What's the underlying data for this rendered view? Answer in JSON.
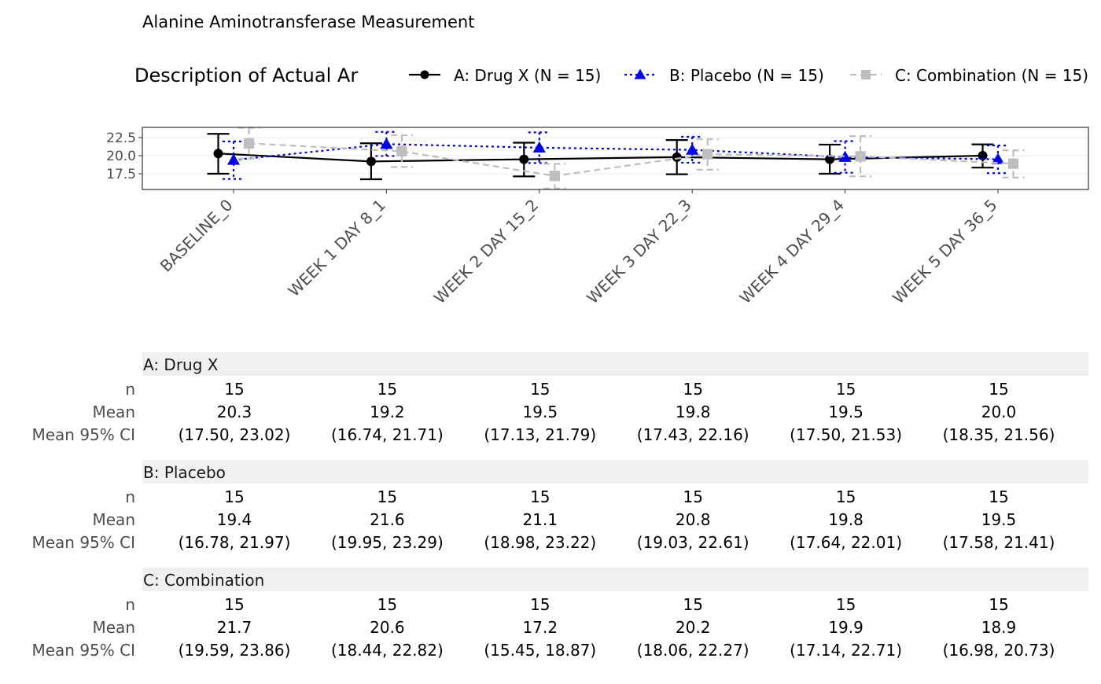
{
  "chart_data": {
    "type": "line",
    "title": "Alanine Aminotransferase Measurement",
    "legend": {
      "title": "Description of Actual Ar",
      "position": "top"
    },
    "xlabel": "",
    "ylabel": "",
    "categories": [
      "BASELINE_0",
      "WEEK 1 DAY 8_1",
      "WEEK 2 DAY 15_2",
      "WEEK 3 DAY 22_3",
      "WEEK 4 DAY 29_4",
      "WEEK 5 DAY 36_5"
    ],
    "y_ticks": [
      "17.5",
      "20.0",
      "22.5"
    ],
    "ylim": [
      15.3,
      24.2
    ],
    "grid": true,
    "series": [
      {
        "name": "A: Drug X (N = 15)",
        "color": "#000000",
        "marker": "circle",
        "line_style": "solid",
        "values": [
          20.3,
          19.2,
          19.5,
          19.8,
          19.5,
          20.0
        ],
        "ci_low": [
          17.5,
          16.74,
          17.13,
          17.43,
          17.5,
          18.35
        ],
        "ci_high": [
          23.02,
          21.71,
          21.79,
          22.16,
          21.53,
          21.56
        ]
      },
      {
        "name": "B: Placebo (N = 15)",
        "color": "#0000ee",
        "marker": "triangle",
        "line_style": "dotted",
        "values": [
          19.4,
          21.6,
          21.1,
          20.8,
          19.8,
          19.5
        ],
        "ci_low": [
          16.78,
          19.95,
          18.98,
          19.03,
          17.64,
          17.58
        ],
        "ci_high": [
          21.97,
          23.29,
          23.22,
          22.61,
          22.01,
          21.41
        ]
      },
      {
        "name": "C: Combination (N = 15)",
        "color": "#bebebe",
        "marker": "square",
        "line_style": "dashed",
        "values": [
          21.7,
          20.6,
          17.2,
          20.2,
          19.9,
          18.9
        ],
        "ci_low": [
          19.59,
          18.44,
          15.45,
          18.06,
          17.14,
          16.98
        ],
        "ci_high": [
          23.86,
          22.82,
          18.87,
          22.27,
          22.71,
          20.73
        ]
      }
    ],
    "table": {
      "row_labels": [
        "n",
        "Mean",
        "Mean 95% CI"
      ],
      "groups": [
        {
          "name": "A: Drug X",
          "n": [
            "15",
            "15",
            "15",
            "15",
            "15",
            "15"
          ],
          "mean": [
            "20.3",
            "19.2",
            "19.5",
            "19.8",
            "19.5",
            "20.0"
          ],
          "ci": [
            "(17.50, 23.02)",
            "(16.74, 21.71)",
            "(17.13, 21.79)",
            "(17.43, 22.16)",
            "(17.50, 21.53)",
            "(18.35, 21.56)"
          ]
        },
        {
          "name": "B: Placebo",
          "n": [
            "15",
            "15",
            "15",
            "15",
            "15",
            "15"
          ],
          "mean": [
            "19.4",
            "21.6",
            "21.1",
            "20.8",
            "19.8",
            "19.5"
          ],
          "ci": [
            "(16.78, 21.97)",
            "(19.95, 23.29)",
            "(18.98, 23.22)",
            "(19.03, 22.61)",
            "(17.64, 22.01)",
            "(17.58, 21.41)"
          ]
        },
        {
          "name": "C: Combination",
          "n": [
            "15",
            "15",
            "15",
            "15",
            "15",
            "15"
          ],
          "mean": [
            "21.7",
            "20.6",
            "17.2",
            "20.2",
            "19.9",
            "18.9"
          ],
          "ci": [
            "(19.59, 23.86)",
            "(18.44, 22.82)",
            "(15.45, 18.87)",
            "(18.06, 22.27)",
            "(17.14, 22.71)",
            "(16.98, 20.73)"
          ]
        }
      ]
    }
  }
}
